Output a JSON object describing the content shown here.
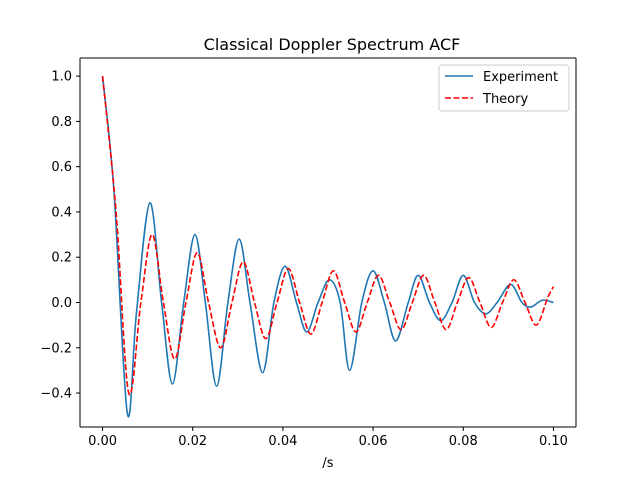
{
  "chart_data": {
    "type": "line",
    "title": "Classical Doppler Spectrum ACF",
    "xlabel": "/s",
    "ylabel": "",
    "xlim": [
      -0.005,
      0.105
    ],
    "ylim": [
      -0.55,
      1.08
    ],
    "xticks": [
      0.0,
      0.02,
      0.04,
      0.06,
      0.08,
      0.1
    ],
    "xtick_labels": [
      "0.00",
      "0.02",
      "0.04",
      "0.06",
      "0.08",
      "0.10"
    ],
    "yticks": [
      -0.4,
      -0.2,
      0.0,
      0.2,
      0.4,
      0.6,
      0.8,
      1.0
    ],
    "ytick_labels": [
      "−0.4",
      "−0.2",
      "0.0",
      "0.2",
      "0.4",
      "0.6",
      "0.8",
      "1.0"
    ],
    "grid": false,
    "legend_position": "top-right",
    "series": [
      {
        "name": "Experiment",
        "color": "#1f77b4",
        "style": "solid",
        "x": [
          0.0,
          0.0025,
          0.0055,
          0.0075,
          0.0105,
          0.0131,
          0.0155,
          0.018,
          0.0205,
          0.0228,
          0.0253,
          0.0278,
          0.0303,
          0.0327,
          0.0355,
          0.038,
          0.0405,
          0.043,
          0.0453,
          0.0478,
          0.0503,
          0.0527,
          0.0548,
          0.0575,
          0.06,
          0.0625,
          0.065,
          0.0678,
          0.07,
          0.0725,
          0.075,
          0.0775,
          0.08,
          0.0825,
          0.085,
          0.0875,
          0.0905,
          0.093,
          0.095,
          0.0975,
          0.1
        ],
        "y": [
          1.0,
          0.5,
          -0.49,
          -0.05,
          0.44,
          0.0,
          -0.36,
          0.0,
          0.3,
          0.0,
          -0.37,
          0.0,
          0.28,
          0.0,
          -0.31,
          0.0,
          0.16,
          0.0,
          -0.13,
          0.0,
          0.1,
          0.0,
          -0.3,
          0.0,
          0.14,
          0.0,
          -0.17,
          0.0,
          0.12,
          0.0,
          -0.08,
          0.0,
          0.12,
          0.0,
          -0.05,
          0.0,
          0.08,
          0.0,
          -0.02,
          0.01,
          0.0
        ]
      },
      {
        "name": "Theory",
        "color": "#ff0000",
        "style": "dashed",
        "x": [
          0.0,
          0.003,
          0.0058,
          0.0085,
          0.011,
          0.0135,
          0.016,
          0.0185,
          0.021,
          0.0235,
          0.0262,
          0.0287,
          0.0312,
          0.0337,
          0.0362,
          0.0387,
          0.0412,
          0.0437,
          0.0462,
          0.0487,
          0.0512,
          0.0537,
          0.0562,
          0.0587,
          0.0612,
          0.0637,
          0.0662,
          0.0687,
          0.0712,
          0.0737,
          0.0762,
          0.0787,
          0.0812,
          0.0837,
          0.0862,
          0.0887,
          0.0912,
          0.0937,
          0.0962,
          0.0987,
          0.1
        ],
        "y": [
          1.0,
          0.4,
          -0.4,
          0.0,
          0.3,
          0.0,
          -0.25,
          0.0,
          0.22,
          0.0,
          -0.2,
          0.0,
          0.18,
          0.0,
          -0.16,
          0.0,
          0.15,
          0.0,
          -0.14,
          0.0,
          0.14,
          0.0,
          -0.13,
          0.0,
          0.12,
          0.0,
          -0.12,
          0.0,
          0.12,
          0.0,
          -0.12,
          0.0,
          0.11,
          0.0,
          -0.11,
          0.0,
          0.1,
          0.0,
          -0.1,
          0.02,
          0.07
        ]
      }
    ]
  }
}
